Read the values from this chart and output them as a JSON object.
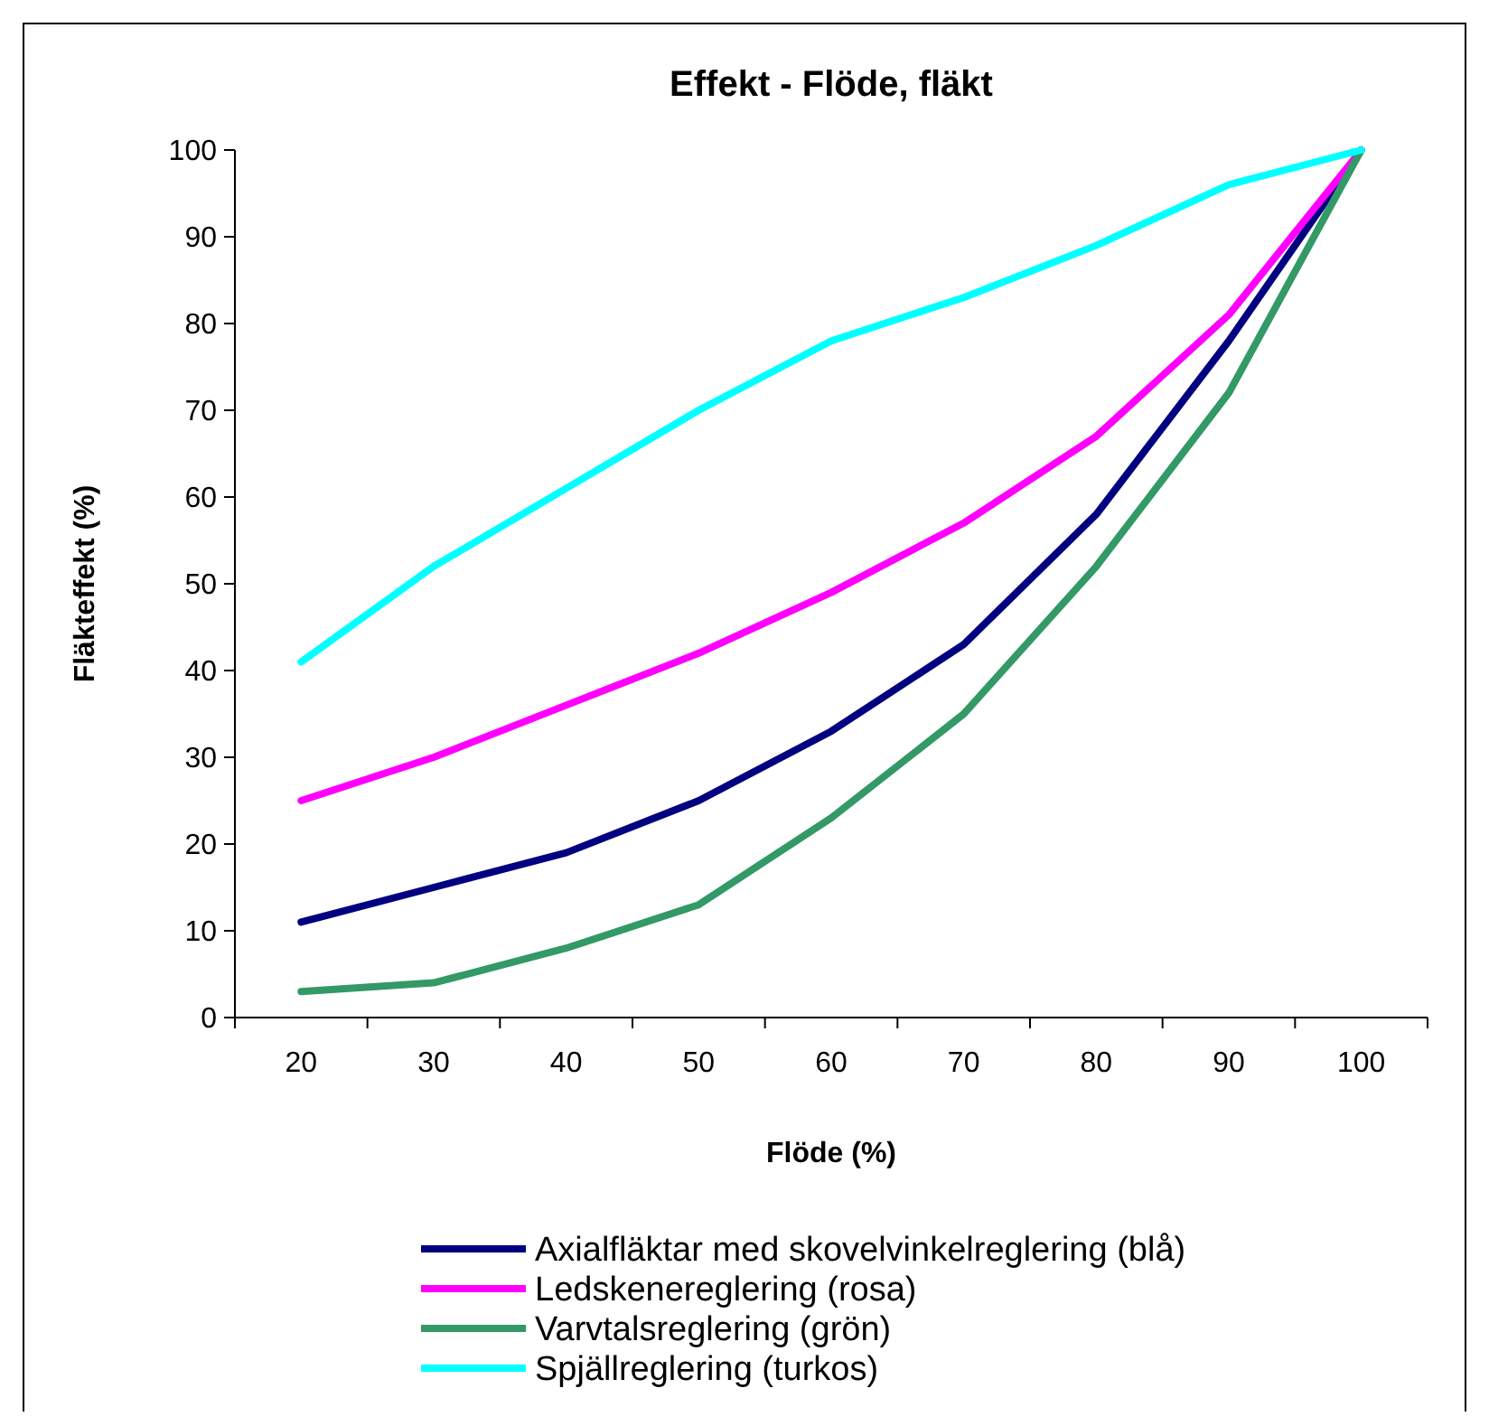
{
  "chart_data": {
    "type": "line",
    "title": "Effekt - Flöde, fläkt",
    "xlabel": "Flöde (%)",
    "ylabel": "Fläkteffekt (%)",
    "categories": [
      "20",
      "30",
      "40",
      "50",
      "60",
      "70",
      "80",
      "90",
      "100"
    ],
    "series": [
      {
        "name": "Axialfläktar med skovelvinkelreglering (blå)",
        "color": "#000080",
        "values": [
          11,
          15,
          19,
          25,
          33,
          43,
          58,
          78,
          100
        ]
      },
      {
        "name": "Ledskenereglering (rosa)",
        "color": "#ff00ff",
        "values": [
          25,
          30,
          36,
          42,
          49,
          57,
          67,
          81,
          100
        ]
      },
      {
        "name": "Varvtalsreglering (grön)",
        "color": "#339966",
        "values": [
          3,
          4,
          8,
          13,
          23,
          35,
          52,
          72,
          100
        ]
      },
      {
        "name": "Spjällreglering (turkos)",
        "color": "#00ffff",
        "values": [
          41,
          52,
          61,
          70,
          78,
          83,
          89,
          96,
          100
        ]
      }
    ],
    "ylim": [
      0,
      100
    ],
    "yticks": [
      0,
      10,
      20,
      30,
      40,
      50,
      60,
      70,
      80,
      90,
      100
    ],
    "grid": false,
    "legend": "bottom",
    "marker": "none",
    "line_style": "solid"
  }
}
